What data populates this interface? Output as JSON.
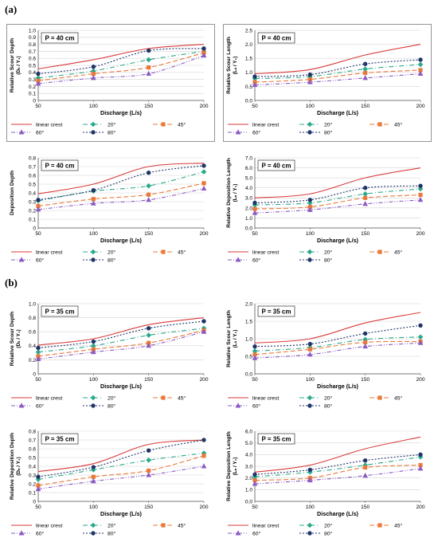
{
  "sections": [
    {
      "label": "(a)"
    },
    {
      "label": "(b)"
    }
  ],
  "legend_labels": [
    "linear crest",
    "20°",
    "45°",
    "60°",
    "80°"
  ],
  "series_styles": [
    {
      "name": "linear crest",
      "color": "#d93a3a",
      "dash": "",
      "marker": "none"
    },
    {
      "name": "20°",
      "color": "#2aa88a",
      "dash": "6,3,1,3",
      "marker": "diamond"
    },
    {
      "name": "45°",
      "color": "#e8793a",
      "dash": "6,3",
      "marker": "square"
    },
    {
      "name": "60°",
      "color": "#8a5bc2",
      "dash": "5,2,1,2,1,2",
      "marker": "triangle"
    },
    {
      "name": "80°",
      "color": "#1f3468",
      "dash": "2,2",
      "marker": "circle"
    }
  ],
  "chart_data": [
    {
      "type": "line",
      "section": "(a)",
      "annotation": "P = 40 cm",
      "ylabel": "Relative Scour Depth",
      "ylabel_sub": "(Dₛ / Y₁)",
      "xlabel": "Discharge (L/s)",
      "x": [
        50,
        100,
        150,
        200
      ],
      "ylim": [
        0,
        1.0
      ],
      "yticks": [
        "0",
        "0.1",
        "0.2",
        "0.3",
        "0.4",
        "0.5",
        "0.6",
        "0.7",
        "0.8",
        "0.9",
        "1.0"
      ],
      "xticks": [
        "50",
        "100",
        "150",
        "200"
      ],
      "series": [
        {
          "name": "linear crest",
          "values": [
            0.45,
            0.58,
            0.74,
            0.8
          ]
        },
        {
          "name": "20°",
          "values": [
            0.32,
            0.42,
            0.58,
            0.7
          ]
        },
        {
          "name": "45°",
          "values": [
            0.28,
            0.38,
            0.47,
            0.68
          ]
        },
        {
          "name": "60°",
          "values": [
            0.24,
            0.32,
            0.38,
            0.64
          ]
        },
        {
          "name": "80°",
          "values": [
            0.38,
            0.48,
            0.71,
            0.74
          ]
        }
      ]
    },
    {
      "type": "line",
      "section": "(a)",
      "annotation": "P = 40 cm",
      "ylabel": "Relative Scour Length",
      "ylabel_sub": "(Lₛ / Y₁)",
      "xlabel": "Discharge (L/s)",
      "x": [
        50,
        100,
        150,
        200
      ],
      "ylim": [
        0,
        2.5
      ],
      "yticks": [
        "0.0",
        "0.5",
        "1.0",
        "1.5",
        "2.0",
        "2.5"
      ],
      "xticks": [
        "50",
        "100",
        "150",
        "200"
      ],
      "series": [
        {
          "name": "linear crest",
          "values": [
            0.95,
            1.1,
            1.62,
            2.0
          ]
        },
        {
          "name": "20°",
          "values": [
            0.78,
            0.85,
            1.12,
            1.28
          ]
        },
        {
          "name": "45°",
          "values": [
            0.65,
            0.75,
            0.98,
            1.08
          ]
        },
        {
          "name": "60°",
          "values": [
            0.55,
            0.65,
            0.8,
            0.95
          ]
        },
        {
          "name": "80°",
          "values": [
            0.85,
            0.92,
            1.3,
            1.45
          ]
        }
      ]
    },
    {
      "type": "line",
      "section": "(a)",
      "annotation": "P = 40 cm",
      "ylabel": "Deposition Depth",
      "ylabel_sub": "",
      "xlabel": "Discharge (L/s)",
      "x": [
        50,
        100,
        150,
        200
      ],
      "ylim": [
        0,
        0.8
      ],
      "yticks": [
        "0",
        "0.1",
        "0.2",
        "0.3",
        "0.4",
        "0.5",
        "0.6",
        "0.7",
        "0.8"
      ],
      "xticks": [
        "50",
        "100",
        "150",
        "200"
      ],
      "series": [
        {
          "name": "linear crest",
          "values": [
            0.39,
            0.5,
            0.7,
            0.74
          ]
        },
        {
          "name": "20°",
          "values": [
            0.31,
            0.42,
            0.48,
            0.64
          ]
        },
        {
          "name": "45°",
          "values": [
            0.25,
            0.33,
            0.38,
            0.51
          ]
        },
        {
          "name": "60°",
          "values": [
            0.21,
            0.28,
            0.32,
            0.45
          ]
        },
        {
          "name": "80°",
          "values": [
            0.32,
            0.43,
            0.63,
            0.71
          ]
        }
      ]
    },
    {
      "type": "line",
      "section": "(a)",
      "annotation": "P = 40 cm",
      "ylabel": "Relative Deposition Length",
      "ylabel_sub": "(Lₙ / Y₁)",
      "xlabel": "Discharge (L/s)",
      "x": [
        50,
        100,
        150,
        200
      ],
      "ylim": [
        0,
        7.0
      ],
      "yticks": [
        "0.0",
        "1.0",
        "2.0",
        "3.0",
        "4.0",
        "5.0",
        "6.0",
        "7.0"
      ],
      "xticks": [
        "50",
        "100",
        "150",
        "200"
      ],
      "series": [
        {
          "name": "linear crest",
          "values": [
            3.0,
            3.4,
            5.0,
            6.0
          ]
        },
        {
          "name": "20°",
          "values": [
            2.3,
            2.5,
            3.4,
            3.9
          ]
        },
        {
          "name": "45°",
          "values": [
            1.9,
            2.1,
            3.0,
            3.3
          ]
        },
        {
          "name": "60°",
          "values": [
            1.5,
            1.8,
            2.4,
            2.8
          ]
        },
        {
          "name": "80°",
          "values": [
            2.5,
            2.8,
            4.0,
            4.2
          ]
        }
      ]
    },
    {
      "type": "line",
      "section": "(b)",
      "annotation": "P = 35 cm",
      "ylabel": "Relative Scour Depth",
      "ylabel_sub": "(Dₛ / Y₁)",
      "xlabel": "Discharge (L/s)",
      "x": [
        50,
        100,
        150,
        200
      ],
      "ylim": [
        0,
        1.0
      ],
      "yticks": [
        "0",
        "0.2",
        "0.4",
        "0.6",
        "0.8",
        "1.0"
      ],
      "xticks": [
        "50",
        "100",
        "150",
        "200"
      ],
      "series": [
        {
          "name": "linear crest",
          "values": [
            0.41,
            0.5,
            0.7,
            0.8
          ]
        },
        {
          "name": "20°",
          "values": [
            0.31,
            0.4,
            0.55,
            0.65
          ]
        },
        {
          "name": "45°",
          "values": [
            0.25,
            0.35,
            0.44,
            0.62
          ]
        },
        {
          "name": "60°",
          "values": [
            0.21,
            0.31,
            0.4,
            0.6
          ]
        },
        {
          "name": "80°",
          "values": [
            0.37,
            0.46,
            0.65,
            0.75
          ]
        }
      ]
    },
    {
      "type": "line",
      "section": "(b)",
      "annotation": "P = 35 cm",
      "ylabel": "Relative Scour Length",
      "ylabel_sub": "(Lₛ / Y₁)",
      "xlabel": "Discharge (L/s)",
      "x": [
        50,
        100,
        150,
        200
      ],
      "ylim": [
        0,
        2.0
      ],
      "yticks": [
        "0.0",
        "0.5",
        "1.0",
        "1.5",
        "2.0"
      ],
      "xticks": [
        "50",
        "100",
        "150",
        "200"
      ],
      "series": [
        {
          "name": "linear crest",
          "values": [
            0.88,
            1.0,
            1.45,
            1.75
          ]
        },
        {
          "name": "20°",
          "values": [
            0.65,
            0.75,
            0.98,
            1.05
          ]
        },
        {
          "name": "45°",
          "values": [
            0.55,
            0.7,
            0.9,
            0.92
          ]
        },
        {
          "name": "60°",
          "values": [
            0.45,
            0.55,
            0.78,
            0.88
          ]
        },
        {
          "name": "80°",
          "values": [
            0.78,
            0.85,
            1.15,
            1.38
          ]
        }
      ]
    },
    {
      "type": "line",
      "section": "(b)",
      "annotation": "P = 35 cm",
      "ylabel": "Relative Deposition Depth",
      "ylabel_sub": "(Dₙ / Y₁)",
      "xlabel": "Discharge (L/s)",
      "x": [
        50,
        100,
        150,
        200
      ],
      "ylim": [
        0,
        0.8
      ],
      "yticks": [
        "0",
        "0.1",
        "0.2",
        "0.3",
        "0.4",
        "0.5",
        "0.6",
        "0.7",
        "0.8"
      ],
      "xticks": [
        "50",
        "100",
        "150",
        "200"
      ],
      "series": [
        {
          "name": "linear crest",
          "values": [
            0.34,
            0.43,
            0.65,
            0.7
          ]
        },
        {
          "name": "20°",
          "values": [
            0.25,
            0.36,
            0.47,
            0.55
          ]
        },
        {
          "name": "45°",
          "values": [
            0.18,
            0.28,
            0.35,
            0.52
          ]
        },
        {
          "name": "60°",
          "values": [
            0.14,
            0.23,
            0.3,
            0.4
          ]
        },
        {
          "name": "80°",
          "values": [
            0.28,
            0.39,
            0.58,
            0.7
          ]
        }
      ]
    },
    {
      "type": "line",
      "section": "(b)",
      "annotation": "P = 35 cm",
      "ylabel": "Relative Deposition Length",
      "ylabel_sub": "(Lₙ / Y₁)",
      "xlabel": "Discharge (L/s)",
      "x": [
        50,
        100,
        150,
        200
      ],
      "ylim": [
        0,
        6.0
      ],
      "yticks": [
        "0.0",
        "1.0",
        "2.0",
        "3.0",
        "4.0",
        "5.0",
        "6.0"
      ],
      "xticks": [
        "50",
        "100",
        "150",
        "200"
      ],
      "series": [
        {
          "name": "linear crest",
          "values": [
            2.5,
            3.1,
            4.5,
            5.5
          ]
        },
        {
          "name": "20°",
          "values": [
            2.1,
            2.5,
            3.1,
            3.8
          ]
        },
        {
          "name": "45°",
          "values": [
            1.8,
            2.0,
            2.9,
            3.1
          ]
        },
        {
          "name": "60°",
          "values": [
            1.5,
            1.8,
            2.2,
            2.8
          ]
        },
        {
          "name": "80°",
          "values": [
            2.3,
            2.7,
            3.5,
            4.0
          ]
        }
      ]
    }
  ]
}
